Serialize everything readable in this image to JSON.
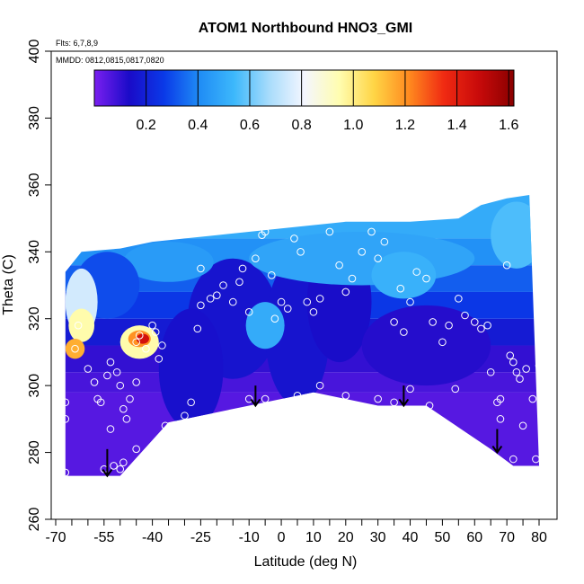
{
  "chart_data": {
    "type": "heatmap",
    "title": "ATOM1 Northbound HNO3_GMI",
    "subtitle_flights": "Flts: 6,7,8,9",
    "subtitle_dates": "MMDD: 0812,0815,0817,0820",
    "xlabel": "Latitude (deg N)",
    "ylabel": "Theta (C)",
    "xlim": [
      -70,
      80
    ],
    "ylim": [
      260,
      400
    ],
    "x_ticks_labeled": [
      -70,
      -55,
      -40,
      -25,
      -10,
      0,
      10,
      20,
      30,
      40,
      50,
      60,
      70,
      80
    ],
    "x_ticks_minor": [
      -65,
      -60,
      -50,
      -45,
      -35,
      -30,
      -20,
      -15,
      -5,
      5,
      15,
      25,
      35,
      45,
      55,
      65,
      75
    ],
    "y_ticks": [
      260,
      280,
      300,
      320,
      340,
      360,
      380,
      400
    ],
    "colorbar": {
      "range": [
        0,
        1.62
      ],
      "tick_values": [
        0.2,
        0.4,
        0.6,
        0.8,
        1.0,
        1.2,
        1.4,
        1.6
      ],
      "tick_labels": [
        "0.2",
        "0.4",
        "0.6",
        "0.8",
        "1.0",
        "1.2",
        "1.4",
        "1.6"
      ],
      "colors": [
        "#7a1ff0",
        "#1a0bc8",
        "#0a3ae8",
        "#1f8cf5",
        "#3db8fb",
        "#a8dcfb",
        "#f4f6ff",
        "#fffdb0",
        "#ffd545",
        "#ff8a1f",
        "#f02a12",
        "#c80a0a",
        "#8a0000"
      ]
    },
    "coverage": {
      "top": [
        [
          -67,
          334
        ],
        [
          -62,
          340
        ],
        [
          -50,
          341
        ],
        [
          -40,
          343
        ],
        [
          -20,
          345
        ],
        [
          0,
          347
        ],
        [
          20,
          349
        ],
        [
          40,
          349
        ],
        [
          55,
          350
        ],
        [
          62,
          354
        ],
        [
          70,
          356
        ],
        [
          77,
          357
        ]
      ],
      "bottom": [
        [
          -67,
          273
        ],
        [
          -50,
          273
        ],
        [
          -35,
          289
        ],
        [
          -10,
          294
        ],
        [
          10,
          298
        ],
        [
          30,
          294
        ],
        [
          45,
          294
        ],
        [
          65,
          281
        ],
        [
          72,
          276
        ],
        [
          80,
          276
        ]
      ]
    },
    "patches": [
      {
        "lon": -15,
        "theta": 320,
        "rx": 14,
        "ry": 18,
        "value": 0.16
      },
      {
        "lon": -28,
        "theta": 305,
        "rx": 10,
        "ry": 18,
        "value": 0.15
      },
      {
        "lon": 5,
        "theta": 316,
        "rx": 10,
        "ry": 22,
        "value": 0.16
      },
      {
        "lon": 18,
        "theta": 325,
        "rx": 10,
        "ry": 18,
        "value": 0.14
      },
      {
        "lon": 45,
        "theta": 312,
        "rx": 20,
        "ry": 12,
        "value": 0.12
      },
      {
        "lon": 25,
        "theta": 338,
        "rx": 35,
        "ry": 8,
        "value": 0.48
      },
      {
        "lon": -5,
        "theta": 318,
        "rx": 6,
        "ry": 7,
        "value": 0.5
      },
      {
        "lon": 38,
        "theta": 333,
        "rx": 10,
        "ry": 7,
        "value": 0.52
      },
      {
        "lon": -35,
        "theta": 337,
        "rx": 14,
        "ry": 6,
        "value": 0.45
      },
      {
        "lon": 73,
        "theta": 345,
        "rx": 8,
        "ry": 10,
        "value": 0.56
      },
      {
        "lon": -54,
        "theta": 330,
        "rx": 10,
        "ry": 10,
        "value": 0.3
      },
      {
        "lon": -62,
        "theta": 325,
        "rx": 5,
        "ry": 10,
        "value": 0.75
      },
      {
        "lon": -62,
        "theta": 318,
        "rx": 4,
        "ry": 5,
        "value": 0.95
      },
      {
        "lon": -64,
        "theta": 311,
        "rx": 3,
        "ry": 3,
        "value": 1.15
      },
      {
        "lon": -44,
        "theta": 313,
        "rx": 6,
        "ry": 5,
        "value": 0.95
      },
      {
        "lon": -44,
        "theta": 314,
        "rx": 3.5,
        "ry": 2.5,
        "value": 1.2
      },
      {
        "lon": -43,
        "theta": 314,
        "rx": 2,
        "ry": 1.5,
        "value": 1.45
      }
    ],
    "observation_points": [
      [
        -67,
        274
      ],
      [
        -67,
        290
      ],
      [
        -67,
        295
      ],
      [
        -63,
        318
      ],
      [
        -64,
        311
      ],
      [
        -60,
        305
      ],
      [
        -58,
        301
      ],
      [
        -57,
        296
      ],
      [
        -56,
        295
      ],
      [
        -54,
        303
      ],
      [
        -53,
        307
      ],
      [
        -51,
        304
      ],
      [
        -50,
        300
      ],
      [
        -49,
        293
      ],
      [
        -48,
        290
      ],
      [
        -47,
        296
      ],
      [
        -45,
        301
      ],
      [
        -45,
        313
      ],
      [
        -44,
        315
      ],
      [
        -42,
        311
      ],
      [
        -40,
        318
      ],
      [
        -39,
        316
      ],
      [
        -38,
        308
      ],
      [
        -37,
        312
      ],
      [
        -36,
        288
      ],
      [
        -52,
        276
      ],
      [
        -49,
        277
      ],
      [
        -45,
        281
      ],
      [
        -30,
        291
      ],
      [
        -28,
        295
      ],
      [
        -26,
        317
      ],
      [
        -25,
        324
      ],
      [
        -25,
        335
      ],
      [
        -22,
        326
      ],
      [
        -20,
        327
      ],
      [
        -18,
        330
      ],
      [
        -15,
        325
      ],
      [
        -13,
        331
      ],
      [
        -12,
        335
      ],
      [
        -10,
        322
      ],
      [
        -8,
        338
      ],
      [
        -6,
        345
      ],
      [
        -5,
        346
      ],
      [
        -3,
        333
      ],
      [
        -2,
        320
      ],
      [
        0,
        325
      ],
      [
        2,
        323
      ],
      [
        4,
        344
      ],
      [
        6,
        340
      ],
      [
        8,
        325
      ],
      [
        10,
        322
      ],
      [
        12,
        326
      ],
      [
        15,
        346
      ],
      [
        18,
        336
      ],
      [
        20,
        328
      ],
      [
        22,
        332
      ],
      [
        25,
        340
      ],
      [
        28,
        346
      ],
      [
        30,
        338
      ],
      [
        32,
        343
      ],
      [
        35,
        319
      ],
      [
        37,
        329
      ],
      [
        38,
        316
      ],
      [
        40,
        325
      ],
      [
        42,
        334
      ],
      [
        45,
        332
      ],
      [
        47,
        319
      ],
      [
        50,
        313
      ],
      [
        52,
        318
      ],
      [
        55,
        326
      ],
      [
        57,
        321
      ],
      [
        60,
        319
      ],
      [
        62,
        317
      ],
      [
        64,
        318
      ],
      [
        65,
        304
      ],
      [
        67,
        295
      ],
      [
        68,
        290
      ],
      [
        70,
        336
      ],
      [
        71,
        309
      ],
      [
        72,
        307
      ],
      [
        73,
        304
      ],
      [
        74,
        302
      ],
      [
        76,
        305
      ],
      [
        78,
        296
      ],
      [
        80,
        306
      ],
      [
        -10,
        296
      ],
      [
        -5,
        296
      ],
      [
        5,
        297
      ],
      [
        12,
        300
      ],
      [
        20,
        297
      ],
      [
        30,
        296
      ],
      [
        35,
        295
      ],
      [
        40,
        299
      ],
      [
        46,
        294
      ],
      [
        54,
        299
      ],
      [
        72,
        278
      ],
      [
        75,
        288
      ],
      [
        79,
        278
      ],
      [
        68,
        296
      ],
      [
        -53,
        287
      ],
      [
        -55,
        275
      ],
      [
        -50,
        275
      ]
    ],
    "arrows": [
      {
        "lon": -54,
        "theta_from": 281,
        "theta_to": 273
      },
      {
        "lon": -8,
        "theta_from": 300,
        "theta_to": 294
      },
      {
        "lon": 38,
        "theta_from": 300,
        "theta_to": 294
      },
      {
        "lon": 67,
        "theta_from": 287,
        "theta_to": 280
      }
    ]
  }
}
